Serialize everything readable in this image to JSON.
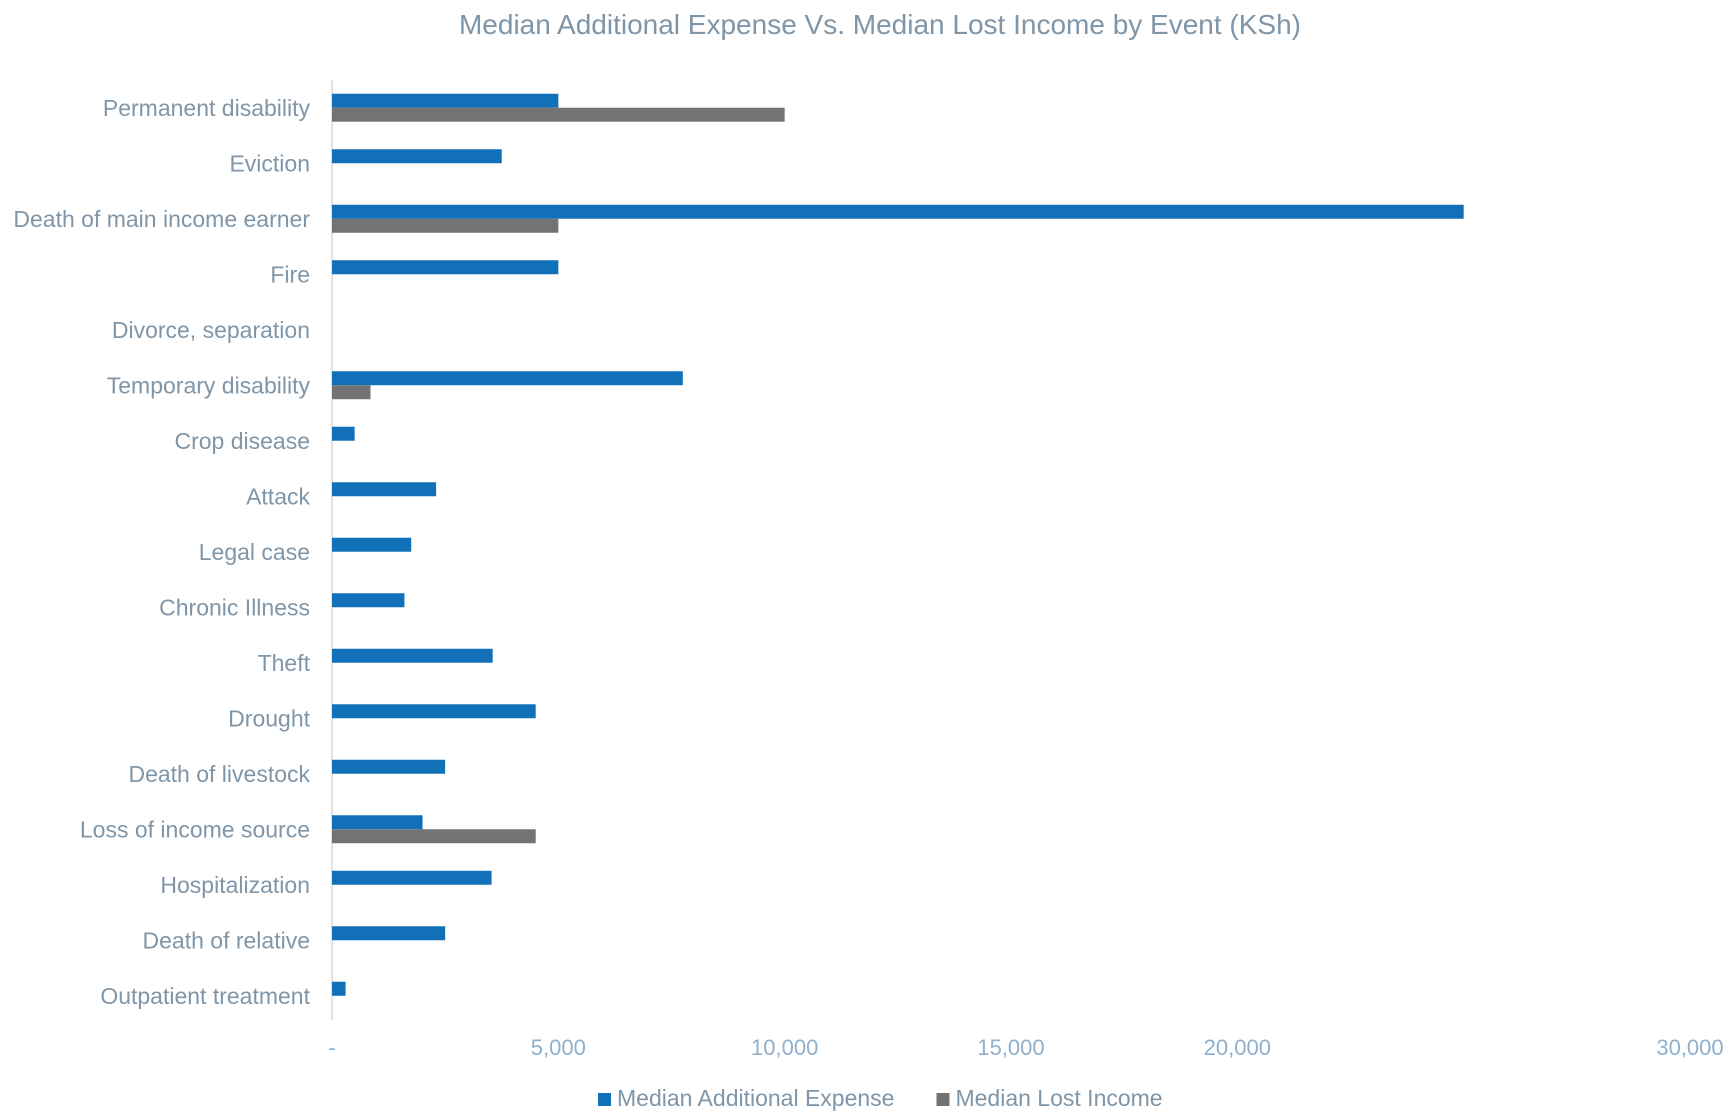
{
  "chart_data": {
    "type": "bar",
    "orientation": "horizontal",
    "title": "Median Additional Expense Vs. Median Lost Income by Event (KSh)",
    "xlabel": "",
    "ylabel": "",
    "xlim": [
      0,
      30000
    ],
    "ticks": [
      {
        "value": 0,
        "label": "-"
      },
      {
        "value": 5000,
        "label": "5,000"
      },
      {
        "value": 10000,
        "label": "10,000"
      },
      {
        "value": 15000,
        "label": "15,000"
      },
      {
        "value": 20000,
        "label": "20,000"
      },
      {
        "value": 30000,
        "label": "30,000"
      }
    ],
    "grid": false,
    "legend_position": "bottom",
    "categories": [
      "Permanent disability",
      "Eviction",
      "Death of main income earner",
      "Fire",
      "Divorce, separation",
      "Temporary disability",
      "Crop disease",
      "Attack",
      "Legal case",
      "Chronic Illness",
      "Theft",
      "Drought",
      "Death of livestock",
      "Loss of income source",
      "Hospitalization",
      "Death of relative",
      "Outpatient treatment"
    ],
    "series": [
      {
        "name": "Median Additional Expense",
        "color": "#1170b8",
        "values": [
          5000,
          3750,
          25000,
          5000,
          0,
          7750,
          500,
          2300,
          1750,
          1600,
          3550,
          4500,
          2500,
          2000,
          3525,
          2500,
          300
        ]
      },
      {
        "name": "Median Lost Income",
        "color": "#737373",
        "values": [
          10000,
          0,
          5000,
          0,
          0,
          850,
          0,
          0,
          0,
          0,
          0,
          0,
          0,
          4500,
          0,
          0,
          0
        ]
      }
    ]
  }
}
